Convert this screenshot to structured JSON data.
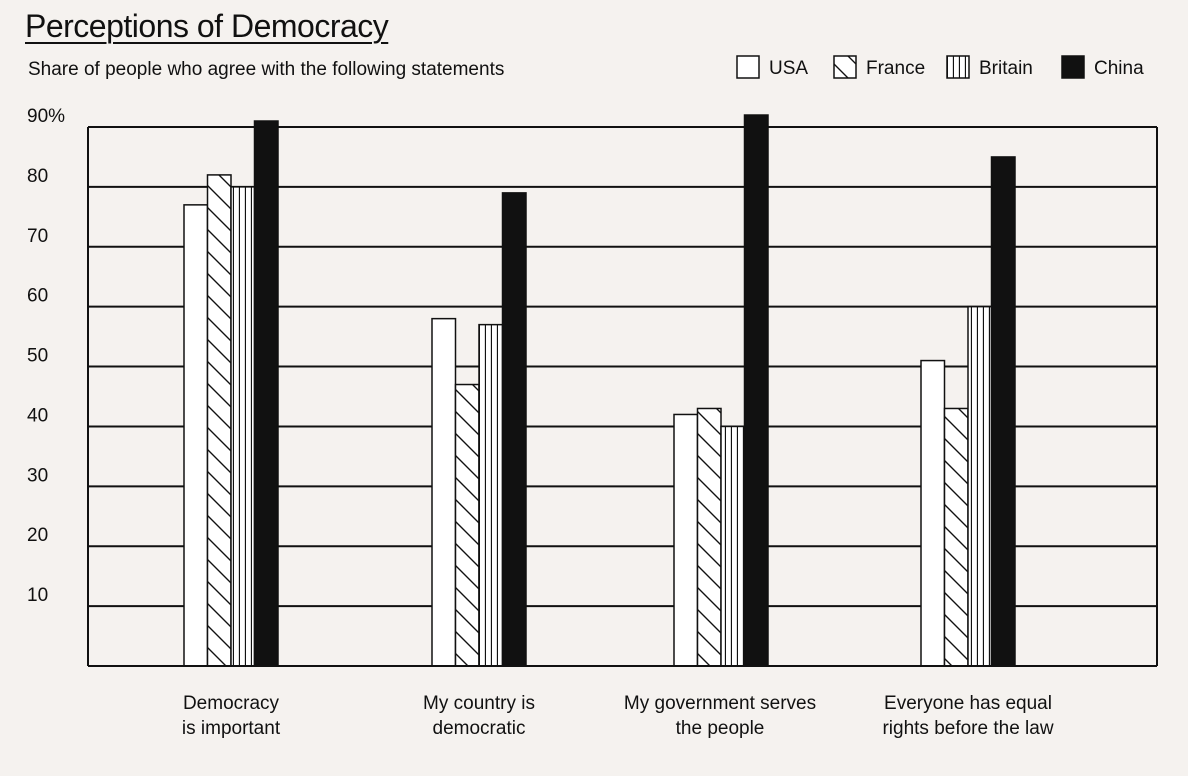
{
  "colors": {
    "background": "#f5f2ef",
    "ink": "#111111",
    "bar_fill": "#ffffff"
  },
  "chart_data": {
    "type": "bar",
    "title": "Perceptions of Democracy",
    "subtitle": "Share of people who agree with the following statements",
    "categories": [
      [
        "Democracy",
        "is important"
      ],
      [
        "My country is",
        "democratic"
      ],
      [
        "My government serves",
        "the people"
      ],
      [
        "Everyone has equal",
        "rights before the law"
      ]
    ],
    "series": [
      {
        "name": "USA",
        "pattern": "none",
        "values": [
          77,
          58,
          42,
          51
        ]
      },
      {
        "name": "France",
        "pattern": "diagonal",
        "values": [
          82,
          47,
          43,
          43
        ]
      },
      {
        "name": "Britain",
        "pattern": "vertical",
        "values": [
          80,
          57,
          40,
          60
        ]
      },
      {
        "name": "China",
        "pattern": "solid",
        "values": [
          91,
          79,
          92,
          85
        ]
      }
    ],
    "yticks": [
      {
        "value": 90,
        "label": "90%"
      },
      {
        "value": 80,
        "label": "80"
      },
      {
        "value": 70,
        "label": "70"
      },
      {
        "value": 60,
        "label": "60"
      },
      {
        "value": 50,
        "label": "50"
      },
      {
        "value": 40,
        "label": "40"
      },
      {
        "value": 30,
        "label": "30"
      },
      {
        "value": 20,
        "label": "20"
      },
      {
        "value": 10,
        "label": "10"
      }
    ],
    "ylim": [
      0,
      90
    ],
    "grid": true,
    "legend": "top-right"
  }
}
